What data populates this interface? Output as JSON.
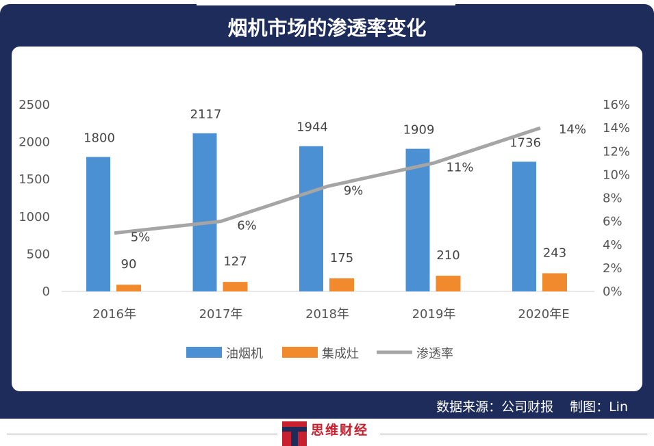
{
  "title": "烟机市场的渗透率变化",
  "footer": {
    "source": "数据来源：公司财报",
    "author": "制图：Lin"
  },
  "logo": {
    "text": "思维财经",
    "colors": [
      "#c8202e",
      "#1d2c5b"
    ]
  },
  "chart_data": {
    "type": "bar",
    "categories": [
      "2016年",
      "2017年",
      "2018年",
      "2019年",
      "2020年E"
    ],
    "series": [
      {
        "name": "油烟机",
        "type": "bar",
        "axis": "left",
        "color": "#4a90d2",
        "values": [
          1800,
          2117,
          1944,
          1909,
          1736
        ]
      },
      {
        "name": "集成灶",
        "type": "bar",
        "axis": "left",
        "color": "#f08a2c",
        "values": [
          90,
          127,
          175,
          210,
          243
        ]
      },
      {
        "name": "渗透率",
        "type": "line",
        "axis": "right",
        "color": "#a5a5a5",
        "values": [
          5,
          6,
          9,
          11,
          14
        ],
        "labels": [
          "5%",
          "6%",
          "9%",
          "11%",
          "14%"
        ]
      }
    ],
    "y_left": {
      "ylim": [
        0,
        2500
      ],
      "ticks": [
        "0",
        "500",
        "1000",
        "1500",
        "2000",
        "2500"
      ]
    },
    "y_right": {
      "ylim": [
        0,
        16
      ],
      "ticks": [
        "0%",
        "2%",
        "4%",
        "6%",
        "8%",
        "10%",
        "12%",
        "14%",
        "16%"
      ]
    },
    "grid": false,
    "legend": "bottom"
  }
}
